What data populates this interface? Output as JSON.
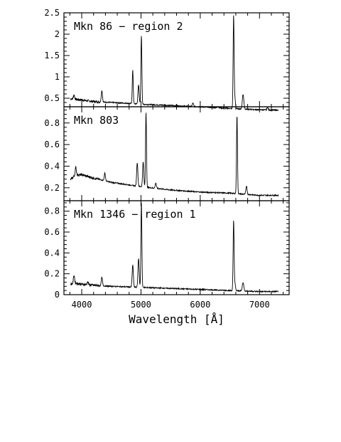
{
  "chart_data": [
    {
      "type": "line",
      "title": "Mkn 86 − region 2",
      "xlabel": "Wavelength [Å]",
      "ylabel": "",
      "xlim": [
        3700,
        7500
      ],
      "ylim": [
        0.3,
        2.5
      ],
      "yticks": [
        0.5,
        1,
        1.5,
        2,
        2.5
      ],
      "ytick_labels": [
        "0.5",
        "1",
        "1.5",
        "2",
        "2.5"
      ],
      "xticks": [
        4000,
        5000,
        6000,
        7000
      ],
      "xtick_labels": [
        "4000",
        "5000",
        "6000",
        "7000"
      ],
      "series": [
        {
          "continuum": [
            [
              3800,
              0.49
            ],
            [
              4000,
              0.46
            ],
            [
              4200,
              0.42
            ],
            [
              4500,
              0.4
            ],
            [
              4800,
              0.38
            ],
            [
              5000,
              0.36
            ],
            [
              5500,
              0.33
            ],
            [
              6000,
              0.3
            ],
            [
              6500,
              0.26
            ],
            [
              7000,
              0.23
            ],
            [
              7300,
              0.22
            ]
          ],
          "lines": [
            [
              3870,
              0.1
            ],
            [
              4340,
              0.27
            ],
            [
              4861,
              0.78
            ],
            [
              4959,
              0.45
            ],
            [
              5007,
              1.62
            ],
            [
              5876,
              0.08
            ],
            [
              6300,
              0.03
            ],
            [
              6563,
              2.17
            ],
            [
              6584,
              0.25
            ],
            [
              6717,
              0.25
            ],
            [
              6731,
              0.18
            ],
            [
              7136,
              0.06
            ]
          ]
        }
      ]
    },
    {
      "type": "line",
      "title": "Mkn 803",
      "xlabel": "Wavelength [Å]",
      "ylabel": "",
      "xlim": [
        3700,
        7500
      ],
      "ylim": [
        0.08,
        0.95
      ],
      "yticks": [
        0.2,
        0.4,
        0.6,
        0.8
      ],
      "ytick_labels": [
        "0.2",
        "0.4",
        "0.6",
        "0.8"
      ],
      "xticks": [
        4000,
        5000,
        6000,
        7000
      ],
      "xtick_labels": [
        "4000",
        "5000",
        "6000",
        "7000"
      ],
      "series": [
        {
          "continuum": [
            [
              3800,
              0.27
            ],
            [
              3900,
              0.32
            ],
            [
              4000,
              0.32
            ],
            [
              4200,
              0.29
            ],
            [
              4500,
              0.25
            ],
            [
              5000,
              0.21
            ],
            [
              5500,
              0.18
            ],
            [
              6000,
              0.16
            ],
            [
              6500,
              0.15
            ],
            [
              7000,
              0.13
            ],
            [
              7330,
              0.13
            ]
          ],
          "lines": [
            [
              3900,
              0.07
            ],
            [
              4390,
              0.07
            ],
            [
              4937,
              0.22
            ],
            [
              5037,
              0.23
            ],
            [
              5085,
              0.7
            ],
            [
              5250,
              0.05
            ],
            [
              6620,
              0.73
            ],
            [
              6780,
              0.08
            ]
          ]
        }
      ]
    },
    {
      "type": "line",
      "title": "Mkn 1346 − region 1",
      "xlabel": "Wavelength [Å]",
      "ylabel": "",
      "xlim": [
        3700,
        7500
      ],
      "ylim": [
        0,
        0.9
      ],
      "yticks": [
        0,
        0.2,
        0.4,
        0.6,
        0.8
      ],
      "ytick_labels": [
        "0",
        "0.2",
        "0.4",
        "0.6",
        "0.8"
      ],
      "xticks": [
        4000,
        5000,
        6000,
        7000
      ],
      "xtick_labels": [
        "4000",
        "5000",
        "6000",
        "7000"
      ],
      "series": [
        {
          "continuum": [
            [
              3800,
              0.1
            ],
            [
              3900,
              0.11
            ],
            [
              4000,
              0.1
            ],
            [
              4200,
              0.09
            ],
            [
              4500,
              0.08
            ],
            [
              5000,
              0.07
            ],
            [
              5500,
              0.06
            ],
            [
              6000,
              0.05
            ],
            [
              6500,
              0.04
            ],
            [
              7000,
              0.03
            ],
            [
              7330,
              0.03
            ]
          ],
          "lines": [
            [
              3870,
              0.08
            ],
            [
              4101,
              0.03
            ],
            [
              4340,
              0.08
            ],
            [
              4861,
              0.21
            ],
            [
              4959,
              0.28
            ],
            [
              5007,
              0.82
            ],
            [
              6563,
              0.67
            ],
            [
              6584,
              0.07
            ],
            [
              6717,
              0.06
            ],
            [
              6731,
              0.04
            ]
          ]
        }
      ]
    }
  ]
}
